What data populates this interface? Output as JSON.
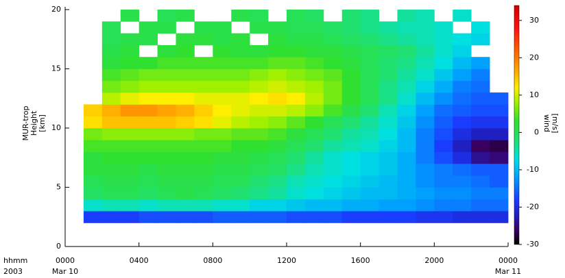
{
  "chart_data": {
    "type": "heatmap",
    "y_label_lines": [
      "MUR-trop",
      "Height",
      "[km]"
    ],
    "colorbar_label_lines": [
      "wind",
      "[m/s]"
    ],
    "x_label_lines": [
      "hhmm",
      "2003"
    ],
    "xlim": [
      0,
      24
    ],
    "xticks": [
      {
        "value": 0,
        "label": "0000"
      },
      {
        "value": 4,
        "label": "0400"
      },
      {
        "value": 8,
        "label": "0800"
      },
      {
        "value": 12,
        "label": "1200"
      },
      {
        "value": 16,
        "label": "1600"
      },
      {
        "value": 20,
        "label": "2000"
      },
      {
        "value": 24,
        "label": "0000"
      }
    ],
    "x_date_labels": [
      {
        "value": 0,
        "label": "Mar 10"
      },
      {
        "value": 24,
        "label": "Mar 11"
      }
    ],
    "ylim": [
      0,
      20
    ],
    "yticks": [
      0,
      5,
      10,
      15,
      20
    ],
    "clim": [
      -30,
      34
    ],
    "cticks": [
      -30,
      -20,
      -10,
      0,
      10,
      20,
      30
    ],
    "colormap": [
      {
        "value": -30,
        "color": "#000000"
      },
      {
        "value": -26,
        "color": "#3a0060"
      },
      {
        "value": -22,
        "color": "#2020c0"
      },
      {
        "value": -18,
        "color": "#1a3cff"
      },
      {
        "value": -12,
        "color": "#00a0ff"
      },
      {
        "value": -7,
        "color": "#00e0e0"
      },
      {
        "value": -2,
        "color": "#20e070"
      },
      {
        "value": 3,
        "color": "#30e030"
      },
      {
        "value": 8,
        "color": "#a0f000"
      },
      {
        "value": 12,
        "color": "#ffee00"
      },
      {
        "value": 16,
        "color": "#ffb000"
      },
      {
        "value": 22,
        "color": "#ff6000"
      },
      {
        "value": 28,
        "color": "#ff1010"
      },
      {
        "value": 34,
        "color": "#d00000"
      }
    ],
    "x": [
      1,
      2,
      3,
      4,
      5,
      6,
      7,
      8,
      9,
      10,
      11,
      12,
      13,
      14,
      15,
      16,
      17,
      18,
      19,
      20,
      21,
      22,
      23
    ],
    "y": [
      2,
      3,
      4,
      5,
      6,
      7,
      8,
      9,
      10,
      11,
      12,
      13,
      14,
      15,
      16,
      17,
      18,
      19
    ],
    "z": [
      [
        -18,
        -18,
        -18,
        -17,
        -17,
        -17,
        -17,
        -16,
        -16,
        -16,
        -16,
        -17,
        -17,
        -17,
        -18,
        -18,
        -18,
        -18,
        -19,
        -19,
        -20,
        -20,
        -20
      ],
      [
        -6,
        -5,
        -5,
        -6,
        -5,
        -5,
        -5,
        -6,
        -6,
        -8,
        -8,
        -9,
        -10,
        -10,
        -11,
        -11,
        -12,
        -12,
        -13,
        -14,
        -14,
        -15,
        -15
      ],
      [
        -1,
        0,
        0,
        -1,
        0,
        1,
        0,
        -1,
        -2,
        -3,
        -4,
        -6,
        -7,
        -8,
        -9,
        -10,
        -10,
        -11,
        -12,
        -13,
        -13,
        -14,
        -14
      ],
      [
        0,
        1,
        1,
        0,
        1,
        1,
        1,
        0,
        0,
        -2,
        -3,
        -5,
        -6,
        -7,
        -8,
        -9,
        -10,
        -11,
        -13,
        -14,
        -14,
        -15,
        -16
      ],
      [
        2,
        2,
        2,
        1,
        2,
        2,
        2,
        1,
        1,
        0,
        -1,
        -3,
        -5,
        -6,
        -7,
        -8,
        -9,
        -11,
        -13,
        -14,
        -15,
        -16,
        -16
      ],
      [
        2,
        3,
        3,
        3,
        3,
        3,
        3,
        2,
        2,
        1,
        0,
        -2,
        -4,
        -6,
        -7,
        -8,
        -9,
        -11,
        -14,
        -17,
        -20,
        -24,
        -25
      ],
      [
        4,
        4,
        4,
        4,
        4,
        4,
        4,
        4,
        3,
        3,
        2,
        0,
        -2,
        -4,
        -5,
        -6,
        -8,
        -10,
        -14,
        -18,
        -22,
        -26,
        -27
      ],
      [
        6,
        7,
        7,
        7,
        7,
        7,
        6,
        6,
        5,
        5,
        4,
        2,
        0,
        -2,
        -4,
        -5,
        -7,
        -10,
        -14,
        -17,
        -20,
        -22,
        -22
      ],
      [
        13,
        15,
        15,
        15,
        15,
        14,
        13,
        11,
        9,
        8,
        7,
        5,
        3,
        0,
        -2,
        -4,
        -6,
        -9,
        -13,
        -16,
        -18,
        -19,
        -19
      ],
      [
        14,
        16,
        18,
        18,
        17,
        16,
        14,
        12,
        11,
        10,
        10,
        9,
        7,
        4,
        1,
        -2,
        -5,
        -8,
        -12,
        -15,
        -16,
        -17,
        -17
      ],
      [
        null,
        9,
        11,
        12,
        12,
        12,
        11,
        11,
        11,
        12,
        13,
        12,
        9,
        6,
        3,
        0,
        -3,
        -6,
        -10,
        -13,
        -15,
        -16,
        -16
      ],
      [
        null,
        6,
        7,
        8,
        8,
        8,
        8,
        8,
        8,
        9,
        10,
        9,
        8,
        6,
        3,
        0,
        -3,
        -5,
        -8,
        -11,
        -14,
        -15,
        null
      ],
      [
        null,
        4,
        5,
        6,
        6,
        6,
        6,
        6,
        6,
        7,
        8,
        7,
        6,
        5,
        3,
        0,
        -2,
        -4,
        -6,
        -9,
        -12,
        -14,
        null
      ],
      [
        null,
        2,
        3,
        3,
        4,
        4,
        4,
        4,
        4,
        4,
        5,
        5,
        4,
        3,
        2,
        0,
        -2,
        -3,
        -5,
        -7,
        -10,
        -12,
        null
      ],
      [
        null,
        1,
        2,
        null,
        2,
        3,
        null,
        3,
        2,
        2,
        3,
        3,
        2,
        2,
        1,
        0,
        -1,
        -2,
        -4,
        -6,
        -8,
        null,
        null
      ],
      [
        null,
        0,
        1,
        1,
        null,
        2,
        2,
        1,
        2,
        null,
        2,
        1,
        1,
        0,
        -1,
        -2,
        -3,
        -4,
        -5,
        -6,
        -7,
        -8,
        null
      ],
      [
        null,
        0,
        null,
        1,
        1,
        null,
        1,
        1,
        null,
        1,
        1,
        0,
        0,
        -1,
        -2,
        -3,
        -4,
        -5,
        -5,
        -6,
        null,
        -7,
        null
      ],
      [
        null,
        null,
        1,
        null,
        0,
        1,
        null,
        null,
        1,
        0,
        null,
        0,
        -1,
        null,
        -2,
        -3,
        null,
        -4,
        -5,
        null,
        -6,
        null,
        null
      ]
    ]
  }
}
